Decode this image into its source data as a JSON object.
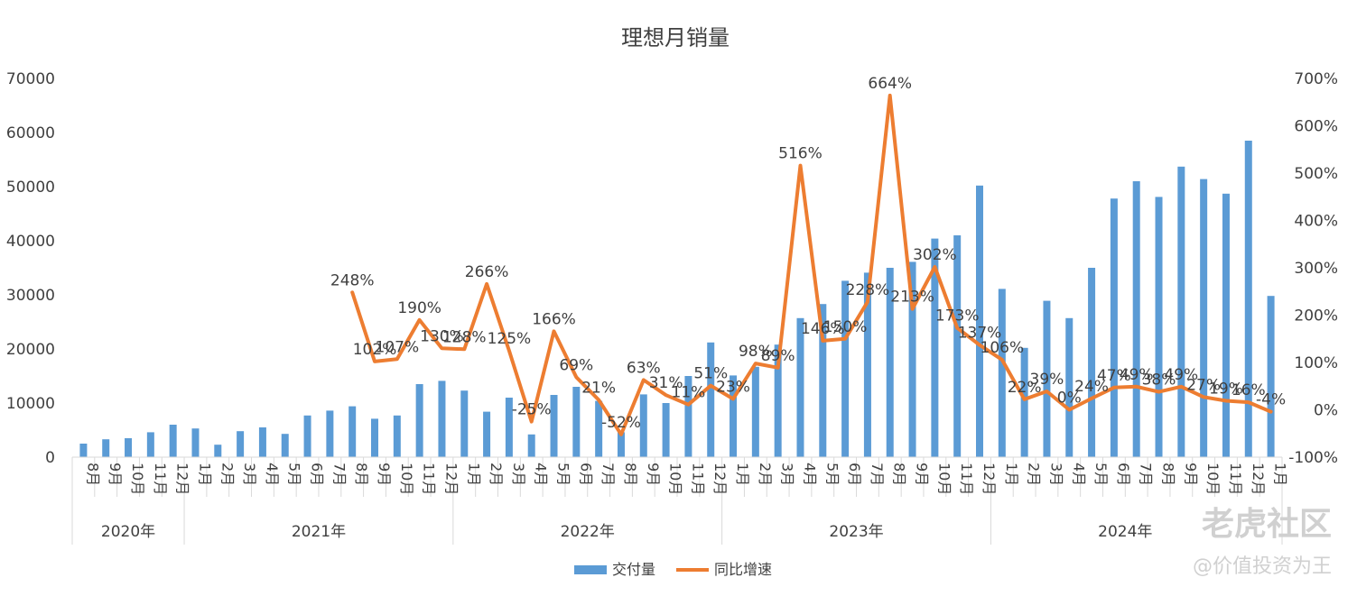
{
  "chart_data": {
    "type": "bar",
    "title": "理想月销量",
    "y_left_ticks": [
      "0",
      "10000",
      "20000",
      "30000",
      "40000",
      "50000",
      "60000",
      "70000"
    ],
    "y_right_ticks": [
      "-100%",
      "0%",
      "100%",
      "200%",
      "300%",
      "400%",
      "500%",
      "600%",
      "700%"
    ],
    "ylim_left": [
      0,
      70000
    ],
    "ylim_right": [
      -100,
      700
    ],
    "years": [
      {
        "label": "2020年",
        "count": 5
      },
      {
        "label": "2021年",
        "count": 12
      },
      {
        "label": "2022年",
        "count": 12
      },
      {
        "label": "2023年",
        "count": 12
      },
      {
        "label": "2024年",
        "count": 12
      }
    ],
    "categories": [
      "8月",
      "9月",
      "10月",
      "11月",
      "12月",
      "1月",
      "2月",
      "3月",
      "4月",
      "5月",
      "6月",
      "7月",
      "8月",
      "9月",
      "10月",
      "11月",
      "12月",
      "1月",
      "2月",
      "3月",
      "4月",
      "5月",
      "6月",
      "7月",
      "8月",
      "9月",
      "10月",
      "11月",
      "12月",
      "1月",
      "2月",
      "3月",
      "4月",
      "5月",
      "6月",
      "7月",
      "8月",
      "9月",
      "10月",
      "11月",
      "12月",
      "1月",
      "2月",
      "3月",
      "4月",
      "5月",
      "6月",
      "7月",
      "8月",
      "9月",
      "10月",
      "11月",
      "12月",
      "1月"
    ],
    "series": [
      {
        "name": "交付量",
        "type": "bar",
        "color": "#5b9bd5",
        "values": [
          2500,
          3300,
          3500,
          4600,
          6000,
          5300,
          2300,
          4800,
          5500,
          4300,
          7700,
          8600,
          9400,
          7100,
          7700,
          13500,
          14100,
          12300,
          8400,
          11000,
          4200,
          11500,
          13000,
          10400,
          4600,
          11600,
          10000,
          15000,
          21200,
          15100,
          16700,
          20800,
          25700,
          28300,
          32600,
          34100,
          35000,
          36100,
          40400,
          41000,
          50200,
          31100,
          20200,
          28900,
          25700,
          35000,
          47800,
          51000,
          48100,
          53700,
          51400,
          48700,
          58500,
          29800
        ]
      },
      {
        "name": "同比增速",
        "type": "line",
        "color": "#ed7d31",
        "values": [
          null,
          null,
          null,
          null,
          null,
          null,
          null,
          null,
          null,
          null,
          null,
          null,
          248,
          102,
          107,
          190,
          130,
          128,
          266,
          125,
          -25,
          166,
          69,
          21,
          -52,
          63,
          31,
          11,
          51,
          23,
          98,
          89,
          516,
          146,
          150,
          228,
          664,
          213,
          302,
          173,
          137,
          106,
          22,
          39,
          0,
          24,
          47,
          49,
          38,
          49,
          27,
          19,
          16,
          -4
        ],
        "labels": [
          "",
          "",
          "",
          "",
          "",
          "",
          "",
          "",
          "",
          "",
          "",
          "",
          "248%",
          "102%",
          "107%",
          "190%",
          "130%",
          "128%",
          "266%",
          "125%",
          "-25%",
          "166%",
          "69%",
          "21%",
          "-52%",
          "63%",
          "31%",
          "11%",
          "51%",
          "23%",
          "98%",
          "89%",
          "516%",
          "146%",
          "150%",
          "228%",
          "664%",
          "213%",
          "302%",
          "173%",
          "137%",
          "106%",
          "22%",
          "39%",
          "0%",
          "24%",
          "47%",
          "49%",
          "38%",
          "49%",
          "27%",
          "19%",
          "16%",
          "-4%"
        ]
      }
    ],
    "legend": "bottom-center"
  },
  "watermark": {
    "brand": "老虎社区",
    "author": "@价值投资为王"
  }
}
